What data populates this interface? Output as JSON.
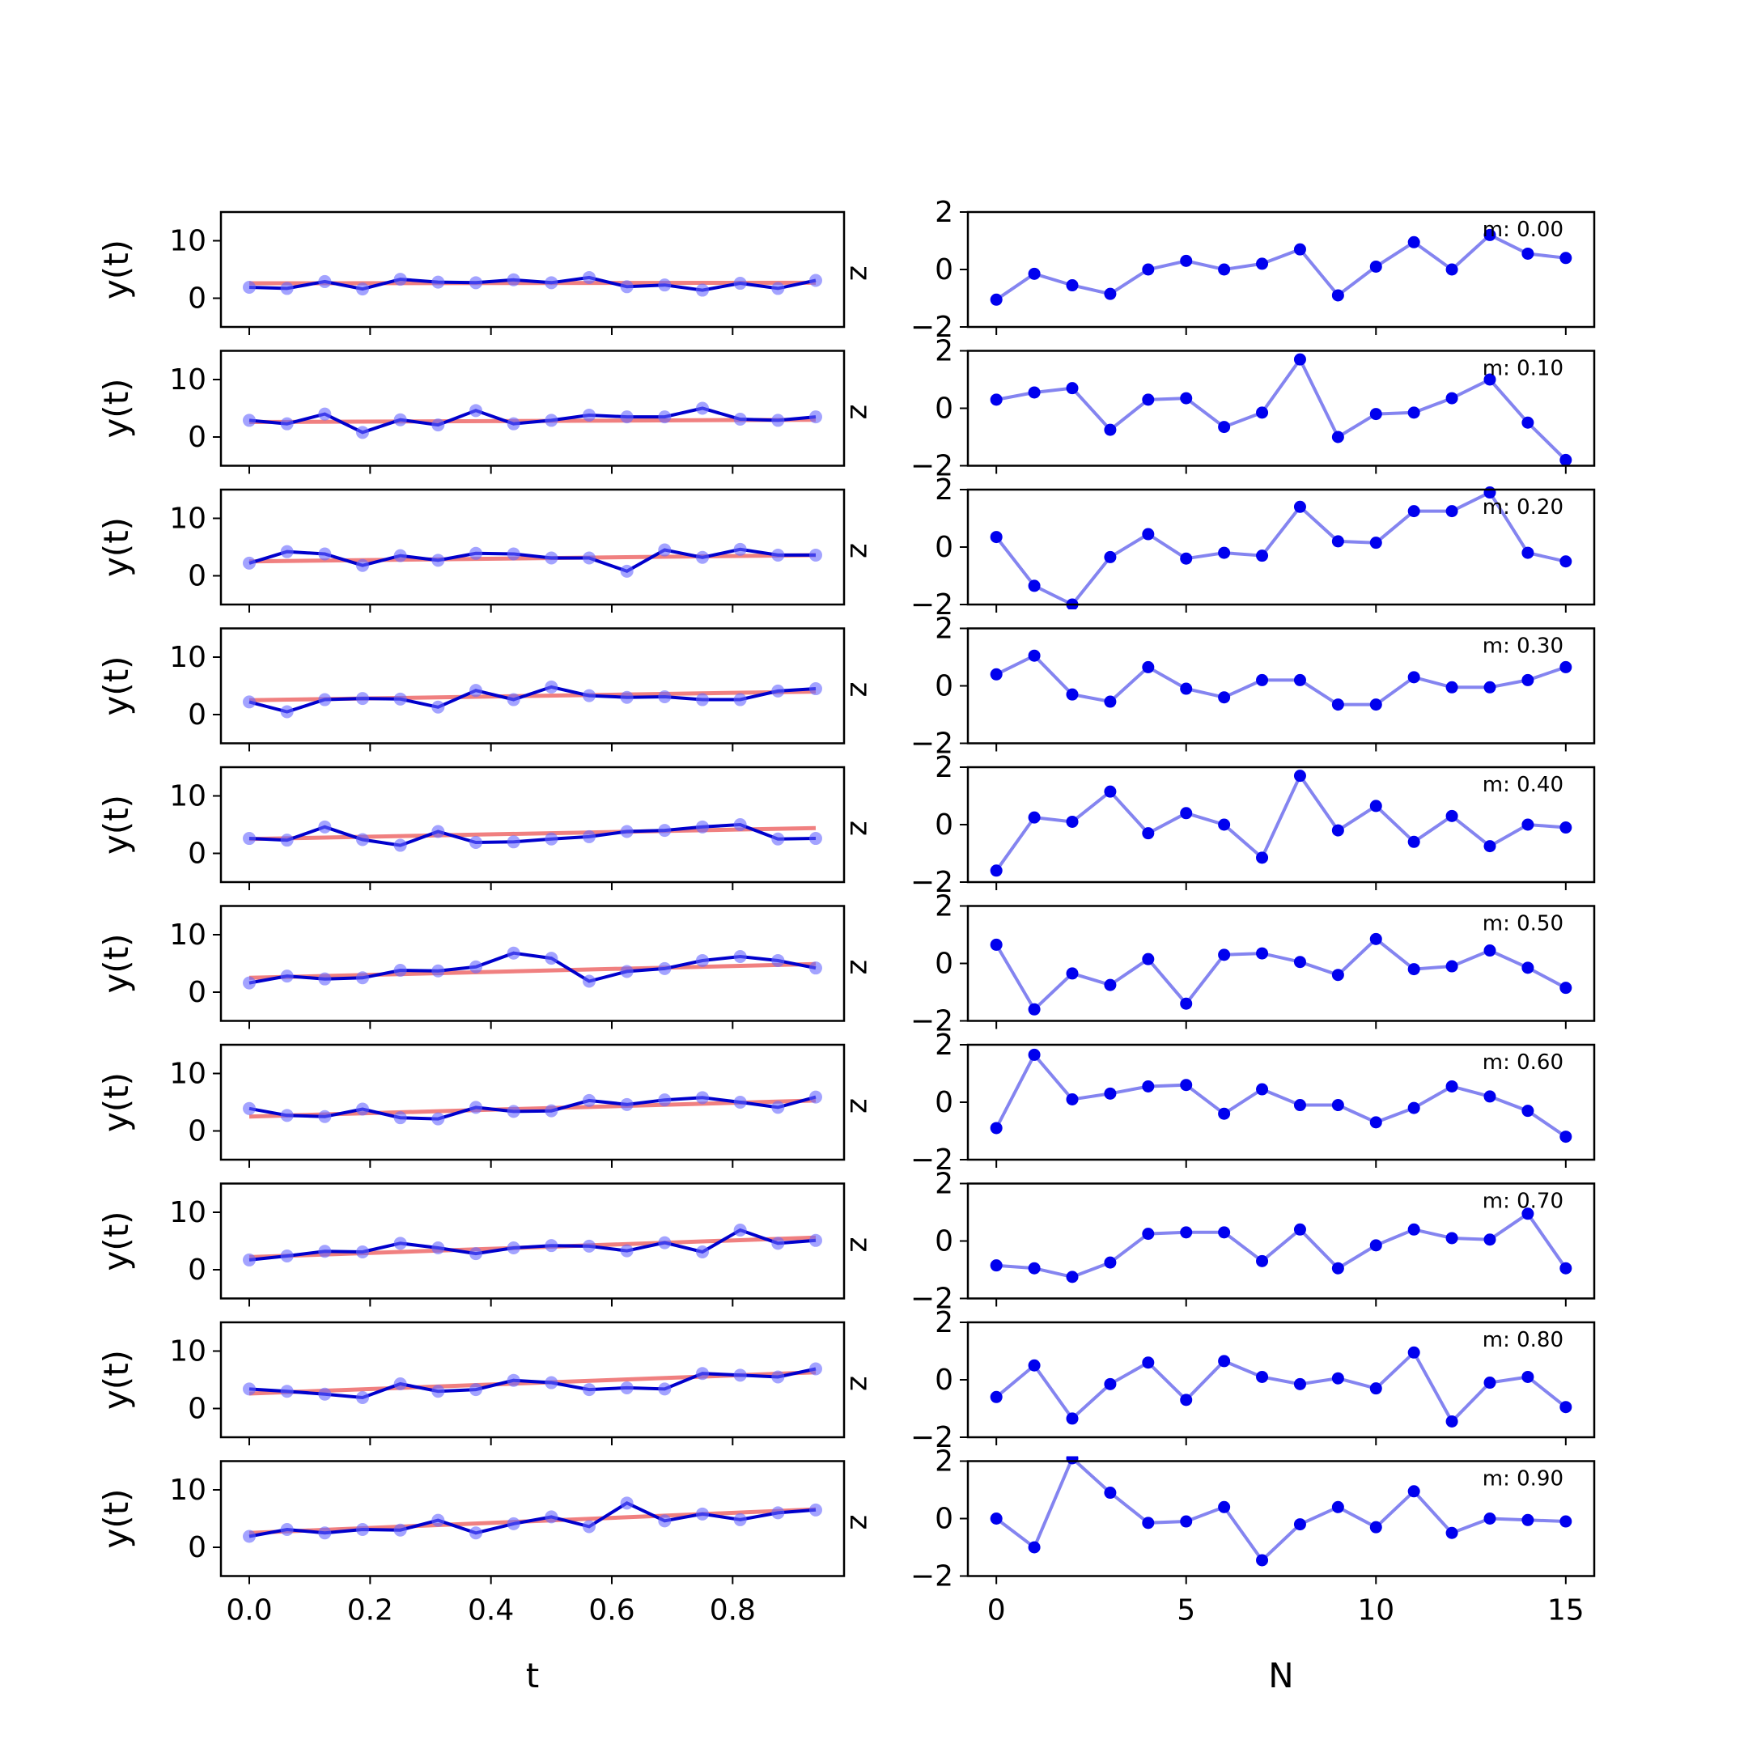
{
  "figure": {
    "left_column": {
      "xlabel": "t",
      "ylabel": "y(t)",
      "right_edge_glyph": "z",
      "x_ticks": [
        "0.0",
        "0.2",
        "0.4",
        "0.6",
        "0.8"
      ],
      "y_ticks": [
        "0",
        "10"
      ],
      "ylim": [
        -5,
        15
      ]
    },
    "right_column": {
      "xlabel": "N",
      "x_ticks": [
        "0",
        "5",
        "10",
        "15"
      ],
      "y_ticks": [
        "−2",
        "0",
        "2"
      ],
      "ylim": [
        -2,
        2
      ]
    },
    "colors": {
      "fit_line": "#f08080",
      "data_line": "#0000cc",
      "data_points": "#6666ff",
      "residual_line": "#7777ee",
      "residual_points": "#0000ee"
    }
  },
  "chart_data": [
    {
      "type": "line",
      "panel": "left",
      "t": [
        0.0,
        0.0625,
        0.125,
        0.1875,
        0.25,
        0.3125,
        0.375,
        0.4375,
        0.5,
        0.5625,
        0.625,
        0.6875,
        0.75,
        0.8125,
        0.875,
        0.9375
      ],
      "rows": [
        {
          "y": [
            1.9,
            1.7,
            2.9,
            1.6,
            3.3,
            2.8,
            2.7,
            3.2,
            2.7,
            3.6,
            2.0,
            2.3,
            1.4,
            2.6,
            1.7,
            3.1
          ],
          "fit": [
            2.6,
            2.7
          ]
        },
        {
          "y": [
            2.9,
            2.3,
            4.0,
            0.8,
            3.0,
            2.1,
            4.6,
            2.3,
            2.9,
            3.8,
            3.5,
            3.5,
            5.0,
            3.1,
            2.9,
            3.5
          ],
          "fit": [
            2.6,
            3.0
          ]
        },
        {
          "y": [
            2.2,
            4.2,
            3.8,
            1.8,
            3.5,
            2.7,
            3.9,
            3.8,
            3.1,
            3.1,
            0.8,
            4.5,
            3.2,
            4.6,
            3.6,
            3.6
          ],
          "fit": [
            2.5,
            3.6
          ]
        },
        {
          "y": [
            2.2,
            0.5,
            2.6,
            2.8,
            2.7,
            1.3,
            4.2,
            2.6,
            4.8,
            3.3,
            3.0,
            3.1,
            2.6,
            2.6,
            4.1,
            4.5
          ],
          "fit": [
            2.5,
            4.0
          ]
        },
        {
          "y": [
            2.6,
            2.3,
            4.6,
            2.4,
            1.4,
            3.8,
            1.9,
            2.0,
            2.5,
            2.9,
            3.8,
            4.0,
            4.6,
            5.0,
            2.5,
            2.6
          ],
          "fit": [
            2.5,
            4.4
          ]
        },
        {
          "y": [
            1.6,
            2.8,
            2.3,
            2.5,
            3.8,
            3.7,
            4.4,
            6.8,
            5.9,
            1.9,
            3.6,
            4.1,
            5.5,
            6.2,
            5.5,
            4.2
          ],
          "fit": [
            2.5,
            4.9
          ]
        },
        {
          "y": [
            3.9,
            2.7,
            2.5,
            3.8,
            2.3,
            2.1,
            4.1,
            3.4,
            3.5,
            5.3,
            4.6,
            5.4,
            5.8,
            5.0,
            4.1,
            5.9
          ],
          "fit": [
            2.5,
            5.3
          ]
        },
        {
          "y": [
            1.7,
            2.4,
            3.2,
            3.1,
            4.6,
            3.8,
            2.8,
            3.8,
            4.2,
            4.1,
            3.3,
            4.7,
            3.1,
            6.9,
            4.6,
            5.1
          ],
          "fit": [
            2.2,
            5.6
          ]
        },
        {
          "y": [
            3.4,
            3.0,
            2.5,
            1.9,
            4.3,
            3.0,
            3.3,
            4.9,
            4.5,
            3.3,
            3.6,
            3.4,
            6.1,
            5.8,
            5.5,
            6.9
          ],
          "fit": [
            2.6,
            6.3
          ]
        },
        {
          "y": [
            1.9,
            3.1,
            2.5,
            3.1,
            3.0,
            4.7,
            2.5,
            4.1,
            5.3,
            3.6,
            7.7,
            4.6,
            5.8,
            4.8,
            6.0,
            6.5
          ],
          "fit": [
            2.5,
            6.6
          ]
        }
      ]
    },
    {
      "type": "line",
      "panel": "right",
      "N": [
        0,
        1,
        2,
        3,
        4,
        5,
        6,
        7,
        8,
        9,
        10,
        11,
        12,
        13,
        14,
        15
      ],
      "rows": [
        {
          "label": "m: 0.00",
          "r": [
            -1.05,
            -0.15,
            -0.55,
            -0.85,
            0.0,
            0.3,
            0.0,
            0.2,
            0.7,
            -0.9,
            0.1,
            0.95,
            0.0,
            1.2,
            0.55,
            0.4
          ]
        },
        {
          "label": "m: 0.10",
          "r": [
            0.3,
            0.55,
            0.7,
            -0.75,
            0.3,
            0.35,
            -0.65,
            -0.15,
            1.7,
            -1.0,
            -0.2,
            -0.15,
            0.35,
            1.0,
            -0.5,
            -1.8
          ]
        },
        {
          "label": "m: 0.20",
          "r": [
            0.35,
            -1.35,
            -2.0,
            -0.35,
            0.45,
            -0.4,
            -0.2,
            -0.3,
            1.4,
            0.2,
            0.15,
            1.25,
            1.25,
            1.9,
            -0.2,
            -0.5
          ]
        },
        {
          "label": "m: 0.30",
          "r": [
            0.4,
            1.05,
            -0.3,
            -0.55,
            0.65,
            -0.1,
            -0.4,
            0.2,
            0.2,
            -0.65,
            -0.65,
            0.3,
            -0.05,
            -0.05,
            0.2,
            0.65
          ]
        },
        {
          "label": "m: 0.40",
          "r": [
            -1.6,
            0.25,
            0.1,
            1.15,
            -0.3,
            0.4,
            0.0,
            -1.15,
            1.7,
            -0.2,
            0.65,
            -0.6,
            0.3,
            -0.75,
            0.0,
            -0.1
          ]
        },
        {
          "label": "m: 0.50",
          "r": [
            0.65,
            -1.6,
            -0.35,
            -0.75,
            0.15,
            -1.4,
            0.3,
            0.35,
            0.05,
            -0.4,
            0.85,
            -0.2,
            -0.1,
            0.45,
            -0.15,
            -0.85
          ]
        },
        {
          "label": "m: 0.60",
          "r": [
            -0.9,
            1.65,
            0.1,
            0.3,
            0.55,
            0.6,
            -0.4,
            0.45,
            -0.1,
            -0.1,
            -0.7,
            -0.2,
            0.55,
            0.2,
            -0.3,
            -1.2
          ]
        },
        {
          "label": "m: 0.70",
          "r": [
            -0.85,
            -0.95,
            -1.25,
            -0.75,
            0.25,
            0.3,
            0.3,
            -0.7,
            0.4,
            -0.95,
            -0.15,
            0.4,
            0.1,
            0.05,
            0.95,
            -0.95
          ]
        },
        {
          "label": "m: 0.80",
          "r": [
            -0.6,
            0.5,
            -1.35,
            -0.15,
            0.6,
            -0.7,
            0.65,
            0.1,
            -0.15,
            0.05,
            -0.3,
            0.95,
            -1.45,
            -0.1,
            0.1,
            -0.95
          ]
        },
        {
          "label": "m: 0.90",
          "r": [
            0.0,
            -1.0,
            2.1,
            0.9,
            -0.15,
            -0.1,
            0.4,
            -1.45,
            -0.2,
            0.4,
            -0.3,
            0.95,
            -0.5,
            0.0,
            -0.05,
            -0.1
          ]
        }
      ]
    }
  ]
}
